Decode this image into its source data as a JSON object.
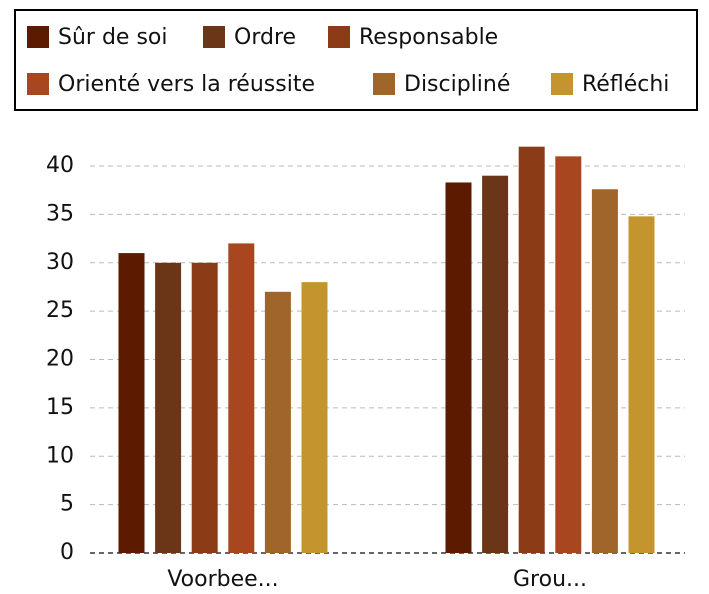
{
  "chart_data": {
    "type": "bar",
    "categories": [
      "Voorbee...",
      "Grou..."
    ],
    "series": [
      {
        "name": "Sûr de soi",
        "color": "#5c1a00",
        "values": [
          31,
          38.3
        ]
      },
      {
        "name": "Ordre",
        "color": "#6b3618",
        "values": [
          30,
          39
        ]
      },
      {
        "name": "Responsable",
        "color": "#8b3c17",
        "values": [
          30,
          42
        ]
      },
      {
        "name": "Orienté vers la réussite",
        "color": "#a8461f",
        "values": [
          32,
          41
        ]
      },
      {
        "name": "Discipliné",
        "color": "#a0652b",
        "values": [
          27,
          37.6
        ]
      },
      {
        "name": "Réfléchi",
        "color": "#c4952f",
        "values": [
          28,
          34.8
        ]
      }
    ],
    "ylim": [
      0,
      43
    ],
    "yticks": [
      0,
      5,
      10,
      15,
      20,
      25,
      30,
      35,
      40
    ],
    "grid": true,
    "legend": "top"
  }
}
